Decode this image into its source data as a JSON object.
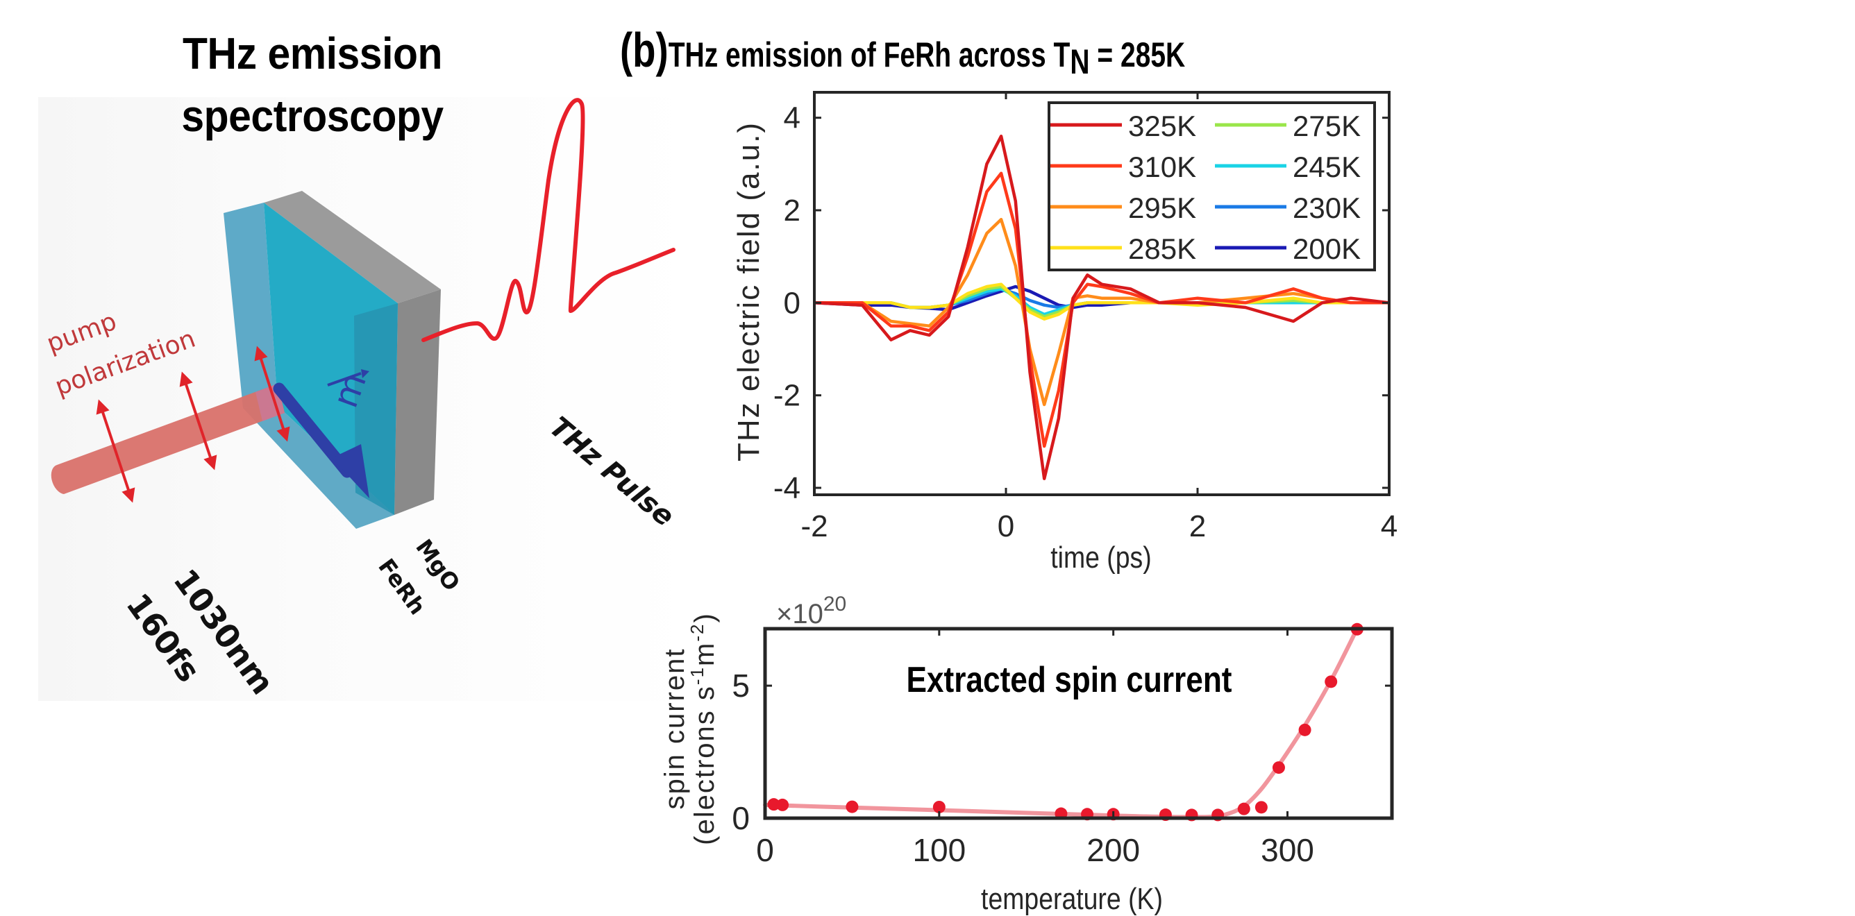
{
  "left_panel": {
    "title_line1": "THz emission",
    "title_line2": "spectroscopy",
    "pump_label_line1": "pump",
    "pump_label_line2": "polarization",
    "magnetization_label": "m",
    "substrate_label": "MgO",
    "film_label": "FeRh",
    "laser_wavelength": "1030nm",
    "laser_duration": "160fs",
    "pulse_label": "THz Pulse"
  },
  "right_panel": {
    "panel_tag": "(b)",
    "title_text": "THz emission of FeRh across T",
    "title_subscript": "N",
    "title_suffix": " = 285K"
  },
  "chart_data": [
    {
      "type": "line",
      "title": "THz emission of FeRh across TN = 285K",
      "xlabel": "time (ps)",
      "ylabel": "THz electric field (a.u.)",
      "xlim": [
        -2,
        4
      ],
      "ylim": [
        -4.15,
        4.55
      ],
      "xticks": [
        -2,
        0,
        2,
        4
      ],
      "xtick_labels": [
        "-2",
        "0",
        "2",
        "4"
      ],
      "yticks": [
        -4,
        -2,
        0,
        2,
        4
      ],
      "ytick_labels": [
        "-4",
        "-2",
        "0",
        "2",
        "4"
      ],
      "grid": false,
      "legend_position": "top-right",
      "legend_columns": 2,
      "x": [
        -2.0,
        -1.5,
        -1.2,
        -1.0,
        -0.8,
        -0.6,
        -0.4,
        -0.2,
        -0.05,
        0.1,
        0.25,
        0.4,
        0.55,
        0.7,
        0.85,
        1.0,
        1.3,
        1.6,
        2.0,
        2.5,
        3.0,
        3.3,
        3.6,
        4.0
      ],
      "series": [
        {
          "name": "325K",
          "color": "#d7191c",
          "values": [
            0.0,
            -0.05,
            -0.8,
            -0.6,
            -0.7,
            -0.3,
            1.2,
            3.0,
            3.6,
            2.2,
            -1.5,
            -3.8,
            -2.5,
            0.1,
            0.6,
            0.4,
            0.3,
            0.0,
            0.0,
            -0.1,
            -0.4,
            0.0,
            0.1,
            0.0
          ]
        },
        {
          "name": "310K",
          "color": "#ff3a1a",
          "values": [
            0.0,
            0.0,
            -0.5,
            -0.5,
            -0.6,
            -0.2,
            1.0,
            2.4,
            2.8,
            1.6,
            -1.2,
            -3.1,
            -1.9,
            0.0,
            0.4,
            0.35,
            0.2,
            0.0,
            0.1,
            0.0,
            0.3,
            0.1,
            0.0,
            0.0
          ]
        },
        {
          "name": "295K",
          "color": "#ff8c1a",
          "values": [
            0.0,
            0.0,
            -0.4,
            -0.45,
            -0.5,
            -0.1,
            0.6,
            1.5,
            1.8,
            0.8,
            -1.0,
            -2.2,
            -1.1,
            0.1,
            0.15,
            0.1,
            0.1,
            0.0,
            0.0,
            0.1,
            0.2,
            0.1,
            0.0,
            0.0
          ]
        },
        {
          "name": "285K",
          "color": "#ffe11a",
          "values": [
            0.0,
            0.0,
            0.0,
            -0.1,
            -0.1,
            -0.05,
            0.2,
            0.35,
            0.4,
            0.1,
            -0.2,
            -0.35,
            -0.25,
            -0.05,
            0.0,
            0.0,
            0.0,
            0.0,
            -0.05,
            0.0,
            0.1,
            0.0,
            0.0,
            0.0
          ]
        },
        {
          "name": "275K",
          "color": "#9ae64a",
          "values": [
            0.0,
            0.0,
            0.0,
            -0.1,
            -0.1,
            -0.05,
            0.15,
            0.3,
            0.35,
            0.1,
            -0.15,
            -0.3,
            -0.2,
            -0.05,
            0.0,
            0.0,
            0.0,
            0.0,
            0.0,
            0.0,
            0.05,
            0.0,
            0.0,
            0.0
          ]
        },
        {
          "name": "245K",
          "color": "#1ad3e6",
          "values": [
            0.0,
            0.0,
            0.0,
            -0.1,
            -0.1,
            -0.05,
            0.1,
            0.25,
            0.3,
            0.15,
            -0.1,
            -0.25,
            -0.15,
            -0.05,
            0.0,
            0.0,
            0.0,
            0.0,
            0.0,
            0.0,
            0.0,
            0.0,
            0.0,
            0.0
          ]
        },
        {
          "name": "230K",
          "color": "#1a7ae6",
          "values": [
            0.0,
            0.0,
            0.0,
            -0.1,
            -0.1,
            -0.05,
            0.05,
            0.2,
            0.3,
            0.2,
            0.05,
            -0.05,
            -0.1,
            -0.05,
            0.0,
            0.0,
            0.0,
            0.0,
            0.0,
            0.0,
            0.0,
            0.0,
            0.0,
            0.0
          ]
        },
        {
          "name": "200K",
          "color": "#1a1ab4",
          "values": [
            0.0,
            -0.05,
            -0.05,
            -0.1,
            -0.12,
            -0.15,
            0.0,
            0.15,
            0.25,
            0.35,
            0.25,
            0.1,
            -0.05,
            -0.1,
            -0.05,
            -0.05,
            0.0,
            0.0,
            0.0,
            0.0,
            0.0,
            0.0,
            0.0,
            0.0
          ]
        }
      ]
    },
    {
      "type": "scatter",
      "title": "Extracted spin current",
      "xlabel": "temperature (K)",
      "ylabel_line1": "spin current",
      "ylabel_line2": "(electrons s-1m-2)",
      "ylabel_unit_base": "(electrons s",
      "ylabel_unit_exp1": "-1",
      "ylabel_unit_mid": "m",
      "ylabel_unit_exp2": "-2",
      "ylabel_unit_end": ")",
      "y_multiplier_base": "×10",
      "y_multiplier_exp": "20",
      "xlim": [
        0,
        360
      ],
      "ylim": [
        0,
        7.15
      ],
      "xticks": [
        0,
        100,
        200,
        300
      ],
      "xtick_labels": [
        "0",
        "100",
        "200",
        "300"
      ],
      "yticks": [
        0,
        5
      ],
      "ytick_labels": [
        "0",
        "5"
      ],
      "grid": false,
      "marker_color": "#e8192c",
      "fit_color": "#f08a92",
      "points": [
        {
          "x": 5,
          "y": 0.52
        },
        {
          "x": 10,
          "y": 0.5
        },
        {
          "x": 50,
          "y": 0.43
        },
        {
          "x": 100,
          "y": 0.42
        },
        {
          "x": 170,
          "y": 0.17
        },
        {
          "x": 185,
          "y": 0.15
        },
        {
          "x": 200,
          "y": 0.15
        },
        {
          "x": 230,
          "y": 0.13
        },
        {
          "x": 245,
          "y": 0.12
        },
        {
          "x": 260,
          "y": 0.12
        },
        {
          "x": 275,
          "y": 0.35
        },
        {
          "x": 285,
          "y": 0.41
        },
        {
          "x": 295,
          "y": 1.91
        },
        {
          "x": 310,
          "y": 3.33
        },
        {
          "x": 325,
          "y": 5.15
        },
        {
          "x": 340,
          "y": 7.13
        }
      ],
      "fit": {
        "x": [
          0,
          50,
          100,
          150,
          200,
          230,
          255,
          265,
          275,
          285,
          295,
          310,
          325,
          340
        ],
        "y": [
          0.5,
          0.4,
          0.3,
          0.2,
          0.1,
          0.05,
          0.05,
          0.15,
          0.45,
          1.1,
          2.0,
          3.5,
          5.2,
          7.15
        ]
      }
    }
  ]
}
